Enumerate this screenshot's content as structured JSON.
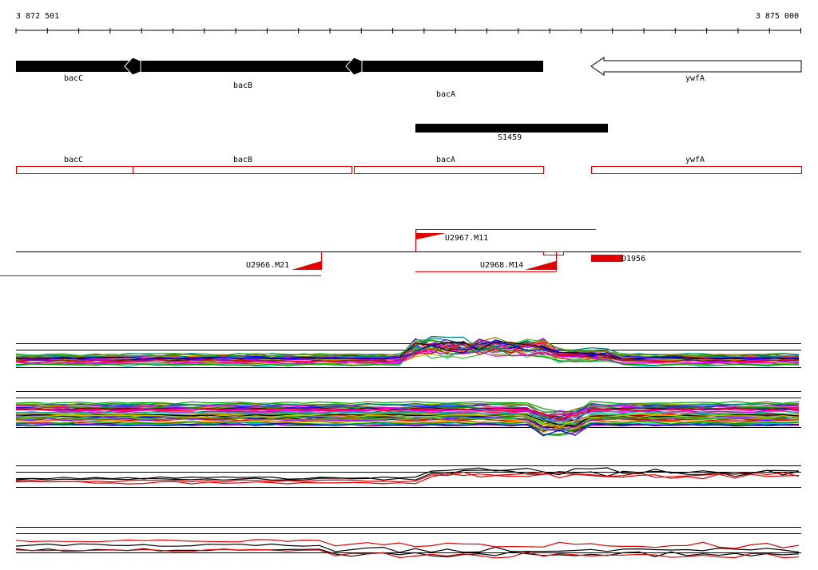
{
  "axis": {
    "start": "3 872 501",
    "end": "3 875 000"
  },
  "genes": [
    {
      "label": "bacC"
    },
    {
      "label": "bacB"
    },
    {
      "label": "bacA"
    },
    {
      "label": "ywfA"
    }
  ],
  "segment": {
    "label": "S1459"
  },
  "annotations": [
    {
      "label": "bacC"
    },
    {
      "label": "bacB"
    },
    {
      "label": "bacA"
    },
    {
      "label": "ywfA"
    }
  ],
  "features": [
    {
      "label": "U2967.M11"
    },
    {
      "label": "U2966.M21"
    },
    {
      "label": "U2968.M14"
    },
    {
      "label": "D1956"
    }
  ]
}
